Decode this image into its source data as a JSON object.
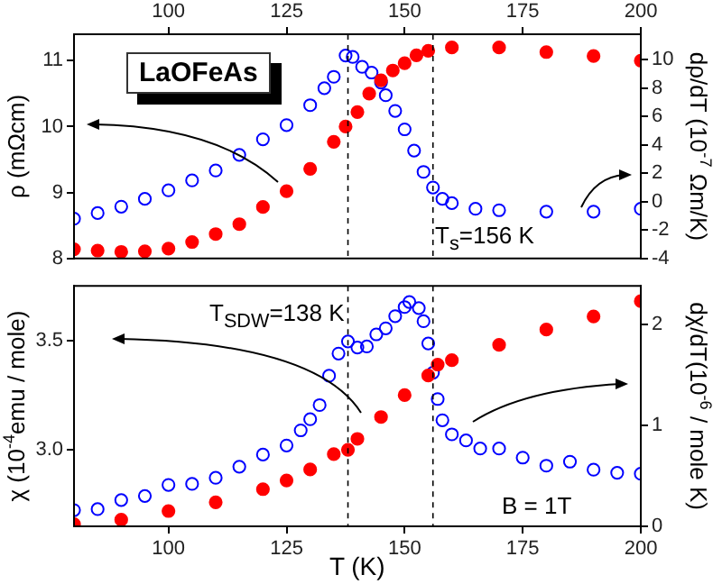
{
  "chart_data": [
    {
      "type": "scatter",
      "ylabel": "ρ (mΩcm)",
      "y2label": "dρ/dT (10$^{-7}$ Ωm/K)",
      "xlim": [
        80,
        200
      ],
      "xticks": [
        100,
        125,
        150,
        175,
        200
      ],
      "ylim": [
        8,
        11.4
      ],
      "yticks": [
        8,
        9,
        10,
        11
      ],
      "y2lim": [
        -4,
        11.8
      ],
      "y2ticks": [
        -4,
        -2,
        0,
        2,
        4,
        6,
        8,
        10
      ],
      "marker": "circle",
      "grid": false,
      "legend": false,
      "ref_lines": [
        {
          "axis": "x",
          "value": 138,
          "color": "#000000",
          "line_style": "dashed"
        },
        {
          "axis": "x",
          "value": 156,
          "color": "#000000",
          "line_style": "dashed"
        }
      ],
      "annotations": [
        "LaOFeAs",
        "T$_{s}$=156 K"
      ],
      "series": [
        {
          "color": "#ff0000",
          "x": [
            80,
            85,
            90,
            95,
            100,
            105,
            110,
            115,
            120,
            125,
            130,
            135,
            137.5,
            140,
            142.5,
            145,
            147.5,
            150,
            152.5,
            155,
            160,
            170,
            180,
            190,
            200
          ],
          "values": [
            8.14,
            8.12,
            8.1,
            8.11,
            8.15,
            8.25,
            8.37,
            8.52,
            8.78,
            9.02,
            9.36,
            9.77,
            10.0,
            10.22,
            10.5,
            10.7,
            10.85,
            10.96,
            11.08,
            11.15,
            11.2,
            11.2,
            11.13,
            11.07,
            11.0
          ]
        },
        {
          "color": "#0000ff",
          "axis": "y2",
          "x": [
            80,
            85,
            90,
            95,
            100,
            105,
            110,
            115,
            120,
            125,
            130,
            133,
            135,
            137.5,
            139,
            141,
            143,
            145,
            146,
            148,
            150,
            152,
            154,
            156,
            158,
            160,
            165,
            170,
            180,
            190,
            200
          ],
          "values": [
            -1.2,
            -0.8,
            -0.35,
            0.2,
            0.8,
            1.5,
            2.2,
            3.3,
            4.4,
            5.4,
            6.8,
            8.0,
            8.8,
            10.3,
            10.2,
            9.5,
            9.1,
            8.4,
            7.5,
            6.4,
            5.1,
            3.6,
            2.1,
            1.0,
            0.2,
            -0.1,
            -0.5,
            -0.6,
            -0.7,
            -0.7,
            -0.5
          ]
        }
      ]
    },
    {
      "type": "scatter",
      "xlabel": "T (K)",
      "ylabel": "χ (10$^{-4}$emu / mole)",
      "y2label": "dχ/dT(10$^{-6}$ / mole K)",
      "xlim": [
        80,
        200
      ],
      "xticks": [
        100,
        125,
        150,
        175,
        200
      ],
      "ylim": [
        2.65,
        3.75
      ],
      "yticks": [
        {
          "value": 3,
          "label": "3.0"
        },
        3.5
      ],
      "y2lim": [
        0,
        2.38
      ],
      "y2ticks": [
        0,
        1,
        2
      ],
      "marker": "circle",
      "grid": false,
      "legend": false,
      "ref_lines": [
        {
          "axis": "x",
          "value": 138,
          "color": "#000000",
          "line_style": "dashed"
        },
        {
          "axis": "x",
          "value": 156,
          "color": "#000000",
          "line_style": "dashed"
        }
      ],
      "annotations": [
        "T$_{SDW}$=138 K",
        "B = 1T"
      ],
      "series": [
        {
          "color": "#ff0000",
          "x": [
            80,
            90,
            100,
            110,
            120,
            125,
            130,
            135,
            138,
            140,
            145,
            150,
            155,
            157,
            160,
            170,
            180,
            190,
            200
          ],
          "values": [
            2.66,
            2.68,
            2.72,
            2.76,
            2.82,
            2.86,
            2.91,
            2.98,
            3.0,
            3.05,
            3.15,
            3.25,
            3.34,
            3.39,
            3.41,
            3.48,
            3.55,
            3.61,
            3.68
          ]
        },
        {
          "color": "#0000ff",
          "axis": "y2",
          "x": [
            80,
            85,
            90,
            95,
            100,
            105,
            110,
            115,
            120,
            125,
            128,
            130,
            132,
            134,
            136,
            138,
            140,
            142,
            144,
            146,
            148,
            150,
            151,
            153,
            154,
            155,
            156,
            157,
            158,
            160,
            163,
            166,
            170,
            175,
            180,
            185,
            190,
            195,
            200
          ],
          "values": [
            0.16,
            0.17,
            0.26,
            0.3,
            0.41,
            0.42,
            0.48,
            0.59,
            0.71,
            0.8,
            0.95,
            1.06,
            1.2,
            1.49,
            1.71,
            1.83,
            1.77,
            1.78,
            1.9,
            1.96,
            2.08,
            2.17,
            2.22,
            2.16,
            2.03,
            1.81,
            1.52,
            1.26,
            1.05,
            0.91,
            0.85,
            0.77,
            0.77,
            0.68,
            0.6,
            0.64,
            0.56,
            0.53,
            0.52
          ]
        }
      ]
    }
  ]
}
